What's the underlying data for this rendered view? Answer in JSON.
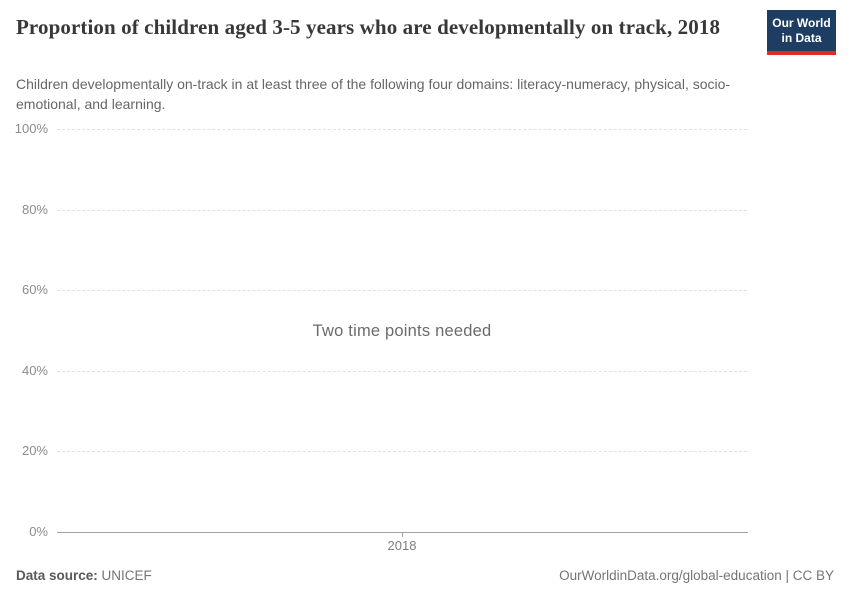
{
  "header": {
    "title": "Proportion of children aged 3-5 years who are developmentally on track, 2018",
    "subtitle": "Children developmentally on-track in at least three of the following four domains: literacy-numeracy, physical, socio-emotional, and learning."
  },
  "logo": {
    "line1": "Our World",
    "line2": "in Data",
    "background_color": "#1d3d63",
    "accent_color": "#dc2e1c"
  },
  "chart_data": {
    "type": "line",
    "title": "Proportion of children aged 3-5 years who are developmentally on track, 2018",
    "series": [],
    "note": "Two time points needed",
    "x": [
      2018
    ],
    "xtick_labels": [
      "2018"
    ],
    "ylim": [
      0,
      100
    ],
    "ytick_labels": [
      "100%",
      "80%",
      "60%",
      "40%",
      "20%",
      "0%"
    ],
    "ytick_values": [
      100,
      80,
      60,
      40,
      20,
      0
    ],
    "grid": "dashed horizontal gridlines, solid baseline at 0%",
    "legend": "none",
    "gridline_color": "#e0e0e0",
    "axis_color": "#a3a3a3",
    "tick_label_color": "#8c8c8c"
  },
  "footer": {
    "datasource_label": "Data source:",
    "datasource_value": "UNICEF",
    "citation": "OurWorldinData.org/global-education | CC BY"
  }
}
